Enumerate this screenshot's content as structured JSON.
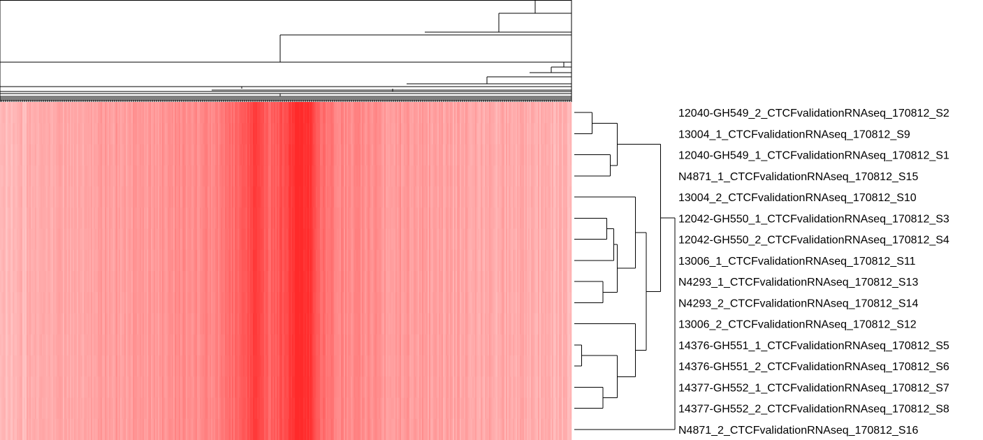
{
  "chart_data": {
    "type": "heatmap",
    "title": "",
    "color_scale": {
      "low": "#ffc4c4",
      "high": "#ff2a2a"
    },
    "rows": [
      "12040-GH549_2_CTCFvalidationRNAseq_170812_S2",
      "13004_1_CTCFvalidationRNAseq_170812_S9",
      "12040-GH549_1_CTCFvalidationRNAseq_170812_S1",
      "N4871_1_CTCFvalidationRNAseq_170812_S15",
      "13004_2_CTCFvalidationRNAseq_170812_S10",
      "12042-GH550_1_CTCFvalidationRNAseq_170812_S3",
      "12042-GH550_2_CTCFvalidationRNAseq_170812_S4",
      "13006_1_CTCFvalidationRNAseq_170812_S11",
      "N4293_1_CTCFvalidationRNAseq_170812_S13",
      "N4293_2_CTCFvalidationRNAseq_170812_S14",
      "13006_2_CTCFvalidationRNAseq_170812_S12",
      "14376-GH551_1_CTCFvalidationRNAseq_170812_S5",
      "14376-GH551_2_CTCFvalidationRNAseq_170812_S6",
      "14377-GH552_1_CTCFvalidationRNAseq_170812_S7",
      "14377-GH552_2_CTCFvalidationRNAseq_170812_S8",
      "N4871_2_CTCFvalidationRNAseq_170812_S16"
    ],
    "row_dendrogram": [
      {
        "children": [
          0,
          1
        ],
        "height": 0.05
      },
      {
        "children": [
          2,
          3
        ],
        "height": 0.1
      },
      {
        "children": [
          "m0",
          "m1"
        ],
        "height": 0.12
      },
      {
        "children": [
          5,
          6
        ],
        "height": 0.09
      },
      {
        "children": [
          8,
          9
        ],
        "height": 0.08
      },
      {
        "children": [
          "m3",
          7
        ],
        "height": 0.11
      },
      {
        "children": [
          "m5",
          "m4"
        ],
        "height": 0.12
      },
      {
        "children": [
          4,
          "m6"
        ],
        "height": 0.17
      },
      {
        "children": [
          13,
          14
        ],
        "height": 0.08
      },
      {
        "children": [
          11,
          12
        ],
        "height": 0.02
      },
      {
        "children": [
          "m9",
          "m8"
        ],
        "height": 0.12
      },
      {
        "children": [
          10,
          "m10"
        ],
        "height": 0.17
      },
      {
        "children": [
          "m7",
          "m11"
        ],
        "height": 0.2
      },
      {
        "children": [
          "m2",
          "m12"
        ],
        "height": 0.24
      },
      {
        "children": [
          "m13",
          15
        ],
        "height": 0.28
      }
    ],
    "column_intensity_profile": [
      {
        "position": 0.0,
        "level": 0.05
      },
      {
        "position": 0.05,
        "level": 0.12
      },
      {
        "position": 0.1,
        "level": 0.18
      },
      {
        "position": 0.2,
        "level": 0.25
      },
      {
        "position": 0.3,
        "level": 0.33
      },
      {
        "position": 0.38,
        "level": 0.42
      },
      {
        "position": 0.43,
        "level": 0.68
      },
      {
        "position": 0.45,
        "level": 0.88
      },
      {
        "position": 0.47,
        "level": 0.62
      },
      {
        "position": 0.5,
        "level": 0.8
      },
      {
        "position": 0.52,
        "level": 1.0
      },
      {
        "position": 0.54,
        "level": 0.95
      },
      {
        "position": 0.56,
        "level": 0.6
      },
      {
        "position": 0.6,
        "level": 0.38
      },
      {
        "position": 0.7,
        "level": 0.28
      },
      {
        "position": 0.8,
        "level": 0.2
      },
      {
        "position": 0.9,
        "level": 0.15
      },
      {
        "position": 1.0,
        "level": 0.1
      }
    ]
  }
}
